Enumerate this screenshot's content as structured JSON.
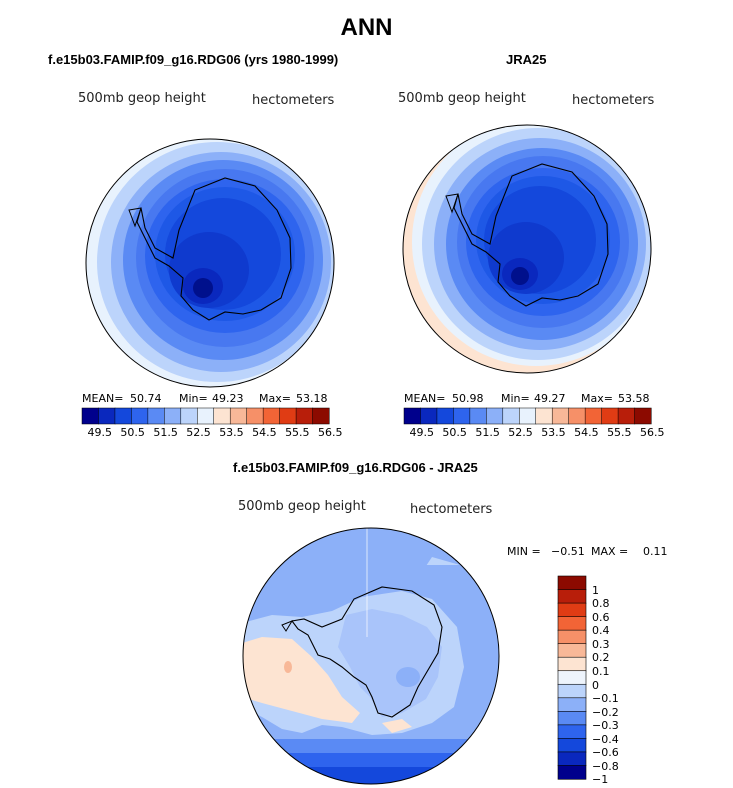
{
  "title": "ANN",
  "left_panel": {
    "title": "f.e15b03.FAMIP.f09_g16.RDG06 (yrs 1980-1999)",
    "field_label": "500mb geop height",
    "units": "hectometers",
    "mean_label": "MEAN=",
    "mean_value": "50.74",
    "min_label": "Min=",
    "min_value": "49.23",
    "max_label": "Max=",
    "max_value": "53.18"
  },
  "right_panel": {
    "title": "JRA25",
    "field_label": "500mb geop height",
    "units": "hectometers",
    "mean_label": "MEAN=",
    "mean_value": "50.98",
    "min_label": "Min=",
    "min_value": "49.27",
    "max_label": "Max=",
    "max_value": "53.58"
  },
  "diff_panel": {
    "title": "f.e15b03.FAMIP.f09_g16.RDG06 - JRA25",
    "field_label": "500mb geop height",
    "units": "hectometers",
    "min_label": "MIN =",
    "min_value": "−0.51",
    "max_label": "MAX =",
    "max_value": "0.11"
  },
  "colorbar_ticks": [
    "49.5",
    "50.5",
    "51.5",
    "52.5",
    "53.5",
    "54.5",
    "55.5",
    "56.5"
  ],
  "colorbar_colors": [
    "#00008c",
    "#0a28be",
    "#1448dc",
    "#2e64ee",
    "#5a8af4",
    "#8cb0f8",
    "#bcd4fb",
    "#e8f2fd",
    "#fde4d2",
    "#f8b898",
    "#f69068",
    "#f26436",
    "#e03c14",
    "#b81e0a",
    "#8c0a00"
  ],
  "diff_colorbar_labels": [
    "1",
    "0.8",
    "0.6",
    "0.4",
    "0.3",
    "0.2",
    "0.1",
    "0",
    "−0.1",
    "−0.2",
    "−0.3",
    "−0.4",
    "−0.6",
    "−0.8",
    "−1"
  ],
  "diff_colorbar_colors": [
    "#8c0a00",
    "#b81e0a",
    "#e03c14",
    "#f26436",
    "#f69068",
    "#f8b898",
    "#fde4d2",
    "#eef4fc",
    "#bcd4fb",
    "#8cb0f8",
    "#5a8af4",
    "#2e64ee",
    "#1448dc",
    "#0a28be",
    "#00008c"
  ],
  "chart_data": {
    "type": "heatmap",
    "panels": [
      {
        "title": "f.e15b03.FAMIP.f09_g16.RDG06 (yrs 1980-1999)",
        "mean": 50.74,
        "min": 49.23,
        "max": 53.18
      },
      {
        "title": "JRA25",
        "mean": 50.98,
        "min": 49.27,
        "max": 53.58
      },
      {
        "title": "f.e15b03.FAMIP.f09_g16.RDG06 - JRA25",
        "min": -0.51,
        "max": 0.11
      }
    ],
    "contour_levels": [
      49.5,
      50.0,
      50.5,
      51.0,
      51.5,
      52.0,
      52.5,
      53.0,
      53.5,
      54.0,
      54.5,
      55.0,
      55.5,
      56.0,
      56.5
    ],
    "diff_levels": [
      -1,
      -0.8,
      -0.6,
      -0.4,
      -0.3,
      -0.2,
      -0.1,
      0,
      0.1,
      0.2,
      0.3,
      0.4,
      0.6,
      0.8,
      1
    ]
  }
}
